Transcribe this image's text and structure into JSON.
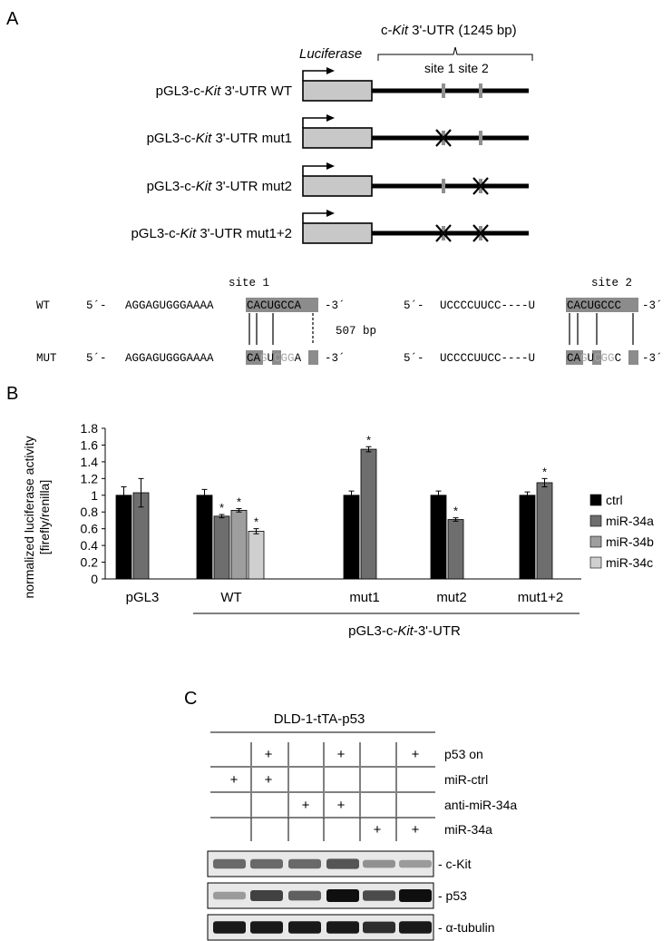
{
  "panels": {
    "a": "A",
    "b": "B",
    "c": "C"
  },
  "panel_a": {
    "utr_label_pre": "c-",
    "utr_label_italic": "Kit",
    "utr_label_post": " 3'-UTR (1245 bp)",
    "luciferase_label": "Luciferase",
    "site_labels": "site 1 site 2",
    "constructs": [
      {
        "pre": "pGL3-c-",
        "italic": "Kit",
        "post": " 3'-UTR WT",
        "site1_mutated": false,
        "site2_mutated": false
      },
      {
        "pre": "pGL3-c-",
        "italic": "Kit",
        "post": " 3'-UTR mut1",
        "site1_mutated": true,
        "site2_mutated": false
      },
      {
        "pre": "pGL3-c-",
        "italic": "Kit",
        "post": " 3'-UTR mut2",
        "site1_mutated": false,
        "site2_mutated": true
      },
      {
        "pre": "pGL3-c-",
        "italic": "Kit",
        "post": " 3'-UTR mut1+2",
        "site1_mutated": true,
        "site2_mutated": true
      }
    ],
    "sequences": {
      "site1_title": "site 1",
      "site2_title": "site 2",
      "wt_label": "WT",
      "mut_label": "MUT",
      "prefix": "5´-",
      "suffix": "-3´",
      "wt_site1_plain": "AGGAGUGGGAAAA",
      "wt_site1_boxed": "CACUGCCA",
      "wt_site2_plain": "UCCCCUUCC----U",
      "wt_site2_boxed": "CACUGCCC",
      "mut_site1_plain": "AGGAGUGGGAAAA",
      "mut_site1_box1": "CA",
      "mut_site1_grey1": "G",
      "mut_site1_box2": "U",
      "mut_site1_grey2": "CGG",
      "mut_site1_box3": "A",
      "mut_site2_plain": "UCCCCUUCC----U",
      "mut_site2_box1": "CA",
      "mut_site2_grey1": "G",
      "mut_site2_box2": "U",
      "mut_site2_grey2": "CGG",
      "mut_site2_box3": "C",
      "gap_label": "507 bp"
    }
  },
  "chart_data": {
    "type": "bar",
    "ylabel_line1": "normalized luciferase activity",
    "ylabel_line2": "[firefly/renilla]",
    "ylim": [
      0,
      1.8
    ],
    "yticks": [
      "0",
      "0.2",
      "0.4",
      "0.6",
      "0.8",
      "1",
      "1.2",
      "1.4",
      "1.6",
      "1.8"
    ],
    "categories": [
      "pGL3",
      "WT",
      "mut1",
      "mut2",
      "mut1+2"
    ],
    "group_label_pre": "pGL3-c-",
    "group_label_italic": "Kit",
    "group_label_post": "-3'-UTR",
    "legend_position": "right",
    "series": [
      {
        "name": "ctrl",
        "color": "#000000"
      },
      {
        "name": "miR-34a",
        "color": "#6e6e6e"
      },
      {
        "name": "miR-34b",
        "color": "#9e9e9e"
      },
      {
        "name": "miR-34c",
        "color": "#cfcfcf"
      }
    ],
    "bars": [
      {
        "category": "pGL3",
        "series": "ctrl",
        "value": 1.0,
        "error": 0.1,
        "star": ""
      },
      {
        "category": "pGL3",
        "series": "miR-34a",
        "value": 1.03,
        "error": 0.17,
        "star": ""
      },
      {
        "category": "WT",
        "series": "ctrl",
        "value": 1.0,
        "error": 0.07,
        "star": ""
      },
      {
        "category": "WT",
        "series": "miR-34a",
        "value": 0.75,
        "error": 0.02,
        "star": "*"
      },
      {
        "category": "WT",
        "series": "miR-34b",
        "value": 0.82,
        "error": 0.02,
        "star": "*"
      },
      {
        "category": "WT",
        "series": "miR-34c",
        "value": 0.57,
        "error": 0.03,
        "star": "*"
      },
      {
        "category": "mut1",
        "series": "ctrl",
        "value": 1.0,
        "error": 0.05,
        "star": ""
      },
      {
        "category": "mut1",
        "series": "miR-34a",
        "value": 1.55,
        "error": 0.03,
        "star": "*"
      },
      {
        "category": "mut2",
        "series": "ctrl",
        "value": 1.0,
        "error": 0.05,
        "star": ""
      },
      {
        "category": "mut2",
        "series": "miR-34a",
        "value": 0.71,
        "error": 0.02,
        "star": "*"
      },
      {
        "category": "mut1+2",
        "series": "ctrl",
        "value": 1.0,
        "error": 0.04,
        "star": ""
      },
      {
        "category": "mut1+2",
        "series": "miR-34a",
        "value": 1.15,
        "error": 0.05,
        "star": "*"
      }
    ]
  },
  "panel_c": {
    "cell_line": "DLD-1-tTA-p53",
    "rows": [
      {
        "label": "p53 on",
        "marks": [
          "",
          "+",
          "",
          "+",
          "",
          "+"
        ]
      },
      {
        "label": "miR-ctrl",
        "marks": [
          "+",
          "+",
          "",
          "",
          "",
          ""
        ]
      },
      {
        "label": "anti-miR-34a",
        "marks": [
          "",
          "",
          "+",
          "+",
          "",
          ""
        ]
      },
      {
        "label": "miR-34a",
        "marks": [
          "",
          "",
          "",
          "",
          "+",
          "+"
        ]
      }
    ],
    "blots": [
      {
        "label": "- c-Kit",
        "intensities": [
          0.55,
          0.55,
          0.55,
          0.65,
          0.35,
          0.3
        ]
      },
      {
        "label": "- p53",
        "intensities": [
          0.3,
          0.75,
          0.6,
          1.0,
          0.7,
          1.0
        ]
      },
      {
        "label": "- α-tubulin",
        "intensities": [
          0.95,
          0.95,
          0.95,
          0.95,
          0.85,
          0.95
        ]
      }
    ]
  }
}
